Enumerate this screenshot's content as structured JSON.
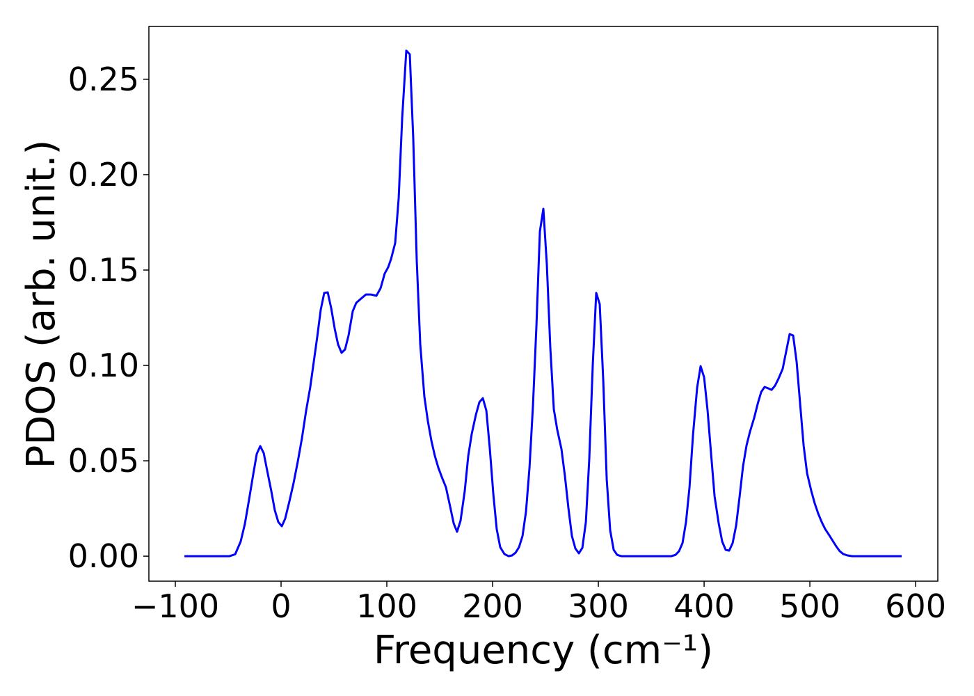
{
  "chart_data": {
    "type": "line",
    "xlabel": "Frequency (cm⁻¹)",
    "ylabel": "PDOS (arb. unit.)",
    "color": "#0000ff",
    "x": [
      -91.4,
      -48.7,
      -43.4,
      -38.2,
      -34.2,
      -30.3,
      -26.3,
      -23,
      -19.7,
      -16.4,
      -13.2,
      -9.2,
      -5.9,
      -2.6,
      0.7,
      3.9,
      7.9,
      11.8,
      15.8,
      19.7,
      23.7,
      27.6,
      30.9,
      34.2,
      37.5,
      40.8,
      44.1,
      47.4,
      50.7,
      53.9,
      57.2,
      60.5,
      63.8,
      67.8,
      71.1,
      75,
      80.3,
      84.9,
      90.1,
      94.1,
      98,
      101.3,
      104,
      107.9,
      111.2,
      114.5,
      118.4,
      121.7,
      125,
      128.3,
      131.6,
      135.5,
      138.8,
      142.1,
      145.4,
      148.7,
      151.9,
      155.9,
      159.9,
      163.2,
      166.4,
      169.7,
      173.7,
      177,
      180.3,
      184.2,
      187.5,
      190.8,
      194.1,
      197.4,
      200.7,
      203.9,
      207.2,
      211.2,
      215.1,
      218.4,
      221.7,
      225,
      228.3,
      231.6,
      234.9,
      238.2,
      241.4,
      244.7,
      248,
      251.3,
      254.6,
      257.9,
      261.2,
      265.1,
      268.4,
      271.7,
      275,
      278.3,
      281.6,
      284.9,
      288.2,
      291.4,
      294.7,
      298,
      301.3,
      304.6,
      307.9,
      311.2,
      314.5,
      317.8,
      321.7,
      369.1,
      373,
      376.3,
      379.6,
      382.9,
      386.2,
      389.5,
      393.4,
      396.7,
      400,
      403.3,
      406.6,
      409.9,
      413.8,
      417.1,
      420.4,
      423.7,
      427,
      430.3,
      433.6,
      436.8,
      440.1,
      443.4,
      447.4,
      450.7,
      454,
      457.2,
      460.5,
      463.8,
      467.1,
      470.4,
      474.3,
      477.6,
      480.9,
      484.2,
      487.5,
      490.8,
      494.1,
      497.4,
      501.3,
      504.6,
      507.9,
      511.2,
      514.5,
      518.4,
      521.7,
      525,
      528.3,
      531.6,
      535.5,
      540,
      586.8
    ],
    "values": [
      0,
      0,
      0.001,
      0.0077,
      0.017,
      0.0296,
      0.043,
      0.0536,
      0.0577,
      0.054,
      0.045,
      0.034,
      0.024,
      0.0179,
      0.0157,
      0.0197,
      0.0288,
      0.0383,
      0.0496,
      0.0617,
      0.0763,
      0.0887,
      0.1018,
      0.115,
      0.1292,
      0.138,
      0.1383,
      0.13,
      0.1193,
      0.111,
      0.1066,
      0.1084,
      0.1157,
      0.1285,
      0.1328,
      0.1347,
      0.1372,
      0.1372,
      0.1365,
      0.1405,
      0.1482,
      0.1515,
      0.1558,
      0.1642,
      0.1876,
      0.2296,
      0.265,
      0.2631,
      0.2186,
      0.1547,
      0.111,
      0.0836,
      0.0708,
      0.0606,
      0.0526,
      0.0464,
      0.0416,
      0.0361,
      0.0259,
      0.0172,
      0.0128,
      0.0186,
      0.0343,
      0.0526,
      0.0642,
      0.0741,
      0.0807,
      0.0828,
      0.0763,
      0.0562,
      0.0325,
      0.0142,
      0.0047,
      0.0011,
      0,
      0.0004,
      0.0018,
      0.0047,
      0.0106,
      0.0234,
      0.0464,
      0.0792,
      0.12,
      0.1701,
      0.1821,
      0.1529,
      0.1091,
      0.077,
      0.0661,
      0.0562,
      0.042,
      0.0252,
      0.0106,
      0.004,
      0.0015,
      0.0044,
      0.0179,
      0.0507,
      0.1,
      0.138,
      0.1321,
      0.0927,
      0.0405,
      0.0135,
      0.0033,
      0.0007,
      0,
      0,
      0.0007,
      0.0026,
      0.0069,
      0.0179,
      0.0361,
      0.0635,
      0.0883,
      0.0996,
      0.0938,
      0.0763,
      0.0536,
      0.0314,
      0.0172,
      0.0077,
      0.0033,
      0.0029,
      0.0069,
      0.0161,
      0.0314,
      0.0471,
      0.058,
      0.0653,
      0.0726,
      0.0799,
      0.0861,
      0.0887,
      0.088,
      0.0872,
      0.0894,
      0.0931,
      0.0982,
      0.1073,
      0.1164,
      0.1157,
      0.1018,
      0.0799,
      0.058,
      0.0434,
      0.0343,
      0.0277,
      0.0223,
      0.0179,
      0.0142,
      0.0109,
      0.008,
      0.0051,
      0.0026,
      0.0011,
      0.0004,
      0,
      0
    ],
    "xlim": [
      -125,
      621
    ],
    "ylim": [
      -0.0131,
      0.2777
    ],
    "xticks": [
      {
        "value": -100,
        "label": "−100"
      },
      0,
      100,
      200,
      300,
      400,
      500,
      600
    ],
    "yticks": [
      {
        "value": 0,
        "label": "0.00"
      },
      {
        "value": 0.05,
        "label": "0.05"
      },
      {
        "value": 0.1,
        "label": "0.10"
      },
      {
        "value": 0.15,
        "label": "0.15"
      },
      {
        "value": 0.2,
        "label": "0.20"
      },
      {
        "value": 0.25,
        "label": "0.25"
      }
    ]
  }
}
